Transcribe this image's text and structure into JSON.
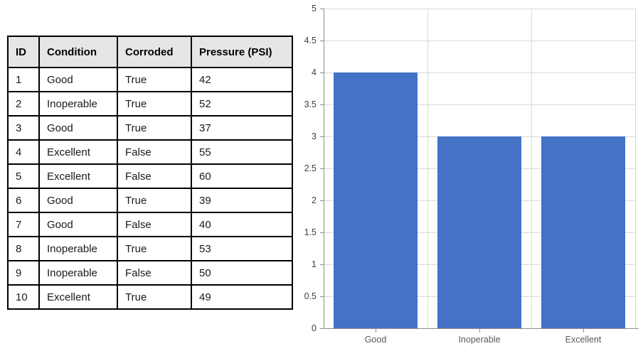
{
  "table": {
    "headers": [
      "ID",
      "Condition",
      "Corroded",
      "Pressure (PSI)"
    ],
    "rows": [
      [
        "1",
        "Good",
        "True",
        "42"
      ],
      [
        "2",
        "Inoperable",
        "True",
        "52"
      ],
      [
        "3",
        "Good",
        "True",
        "37"
      ],
      [
        "4",
        "Excellent",
        "False",
        "55"
      ],
      [
        "5",
        "Excellent",
        "False",
        "60"
      ],
      [
        "6",
        "Good",
        "True",
        "39"
      ],
      [
        "7",
        "Good",
        "False",
        "40"
      ],
      [
        "8",
        "Inoperable",
        "True",
        "53"
      ],
      [
        "9",
        "Inoperable",
        "False",
        "50"
      ],
      [
        "10",
        "Excellent",
        "True",
        "49"
      ]
    ],
    "header_bg": "#E7E6E6",
    "border_color": "#000000"
  },
  "chart_data": {
    "type": "bar",
    "title": "",
    "xlabel": "",
    "ylabel": "",
    "categories": [
      "Good",
      "Inoperable",
      "Excellent"
    ],
    "values": [
      4,
      3,
      3
    ],
    "ylim": [
      0,
      5
    ],
    "ytick_step": 0.5,
    "ytick_labels": [
      "0",
      "0.5",
      "1",
      "1.5",
      "2",
      "2.5",
      "3",
      "3.5",
      "4",
      "4.5",
      "5"
    ],
    "grid": true,
    "legend": false,
    "bar_color": "#4472C4",
    "gridline_color": "#D9D9D9",
    "axis_color": "#8C8C8C",
    "tick_label_color": "#404040",
    "category_label_color": "#595959"
  }
}
